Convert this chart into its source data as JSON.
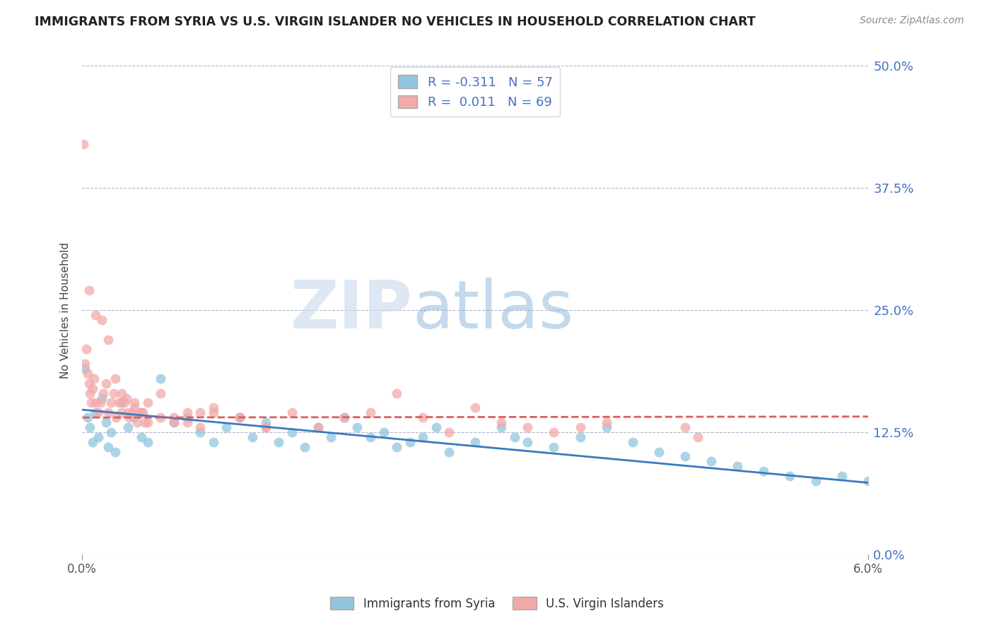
{
  "title": "IMMIGRANTS FROM SYRIA VS U.S. VIRGIN ISLANDER NO VEHICLES IN HOUSEHOLD CORRELATION CHART",
  "source": "Source: ZipAtlas.com",
  "ylabel": "No Vehicles in Household",
  "ytick_labels": [
    "0.0%",
    "12.5%",
    "25.0%",
    "37.5%",
    "50.0%"
  ],
  "ytick_values": [
    0.0,
    0.125,
    0.25,
    0.375,
    0.5
  ],
  "xlim": [
    0.0,
    0.06
  ],
  "ylim": [
    0.0,
    0.5
  ],
  "blue_color": "#92c5de",
  "pink_color": "#f4a9a9",
  "blue_line_color": "#3a7abf",
  "pink_line_color": "#d95f5f",
  "blue_R": -0.311,
  "blue_N": 57,
  "pink_R": 0.011,
  "pink_N": 69,
  "watermark_zip": "ZIP",
  "watermark_atlas": "atlas",
  "legend_label_blue": "Immigrants from Syria",
  "legend_label_pink": "U.S. Virgin Islanders",
  "blue_scatter_x": [
    0.0002,
    0.0004,
    0.0006,
    0.0008,
    0.001,
    0.0012,
    0.0015,
    0.0018,
    0.002,
    0.0022,
    0.0025,
    0.003,
    0.0035,
    0.004,
    0.0045,
    0.005,
    0.006,
    0.007,
    0.008,
    0.009,
    0.01,
    0.011,
    0.012,
    0.013,
    0.014,
    0.015,
    0.016,
    0.017,
    0.018,
    0.019,
    0.02,
    0.021,
    0.022,
    0.023,
    0.024,
    0.025,
    0.026,
    0.027,
    0.028,
    0.03,
    0.032,
    0.033,
    0.034,
    0.036,
    0.038,
    0.04,
    0.042,
    0.044,
    0.046,
    0.048,
    0.05,
    0.052,
    0.054,
    0.056,
    0.058,
    0.06,
    0.061
  ],
  "blue_scatter_y": [
    0.19,
    0.14,
    0.13,
    0.115,
    0.145,
    0.12,
    0.16,
    0.135,
    0.11,
    0.125,
    0.105,
    0.155,
    0.13,
    0.14,
    0.12,
    0.115,
    0.18,
    0.135,
    0.14,
    0.125,
    0.115,
    0.13,
    0.14,
    0.12,
    0.135,
    0.115,
    0.125,
    0.11,
    0.13,
    0.12,
    0.14,
    0.13,
    0.12,
    0.125,
    0.11,
    0.115,
    0.12,
    0.13,
    0.105,
    0.115,
    0.13,
    0.12,
    0.115,
    0.11,
    0.12,
    0.13,
    0.115,
    0.105,
    0.1,
    0.095,
    0.09,
    0.085,
    0.08,
    0.075,
    0.08,
    0.075,
    0.085
  ],
  "pink_scatter_x": [
    0.0001,
    0.0002,
    0.0003,
    0.0004,
    0.0005,
    0.0006,
    0.0007,
    0.0008,
    0.0009,
    0.001,
    0.0012,
    0.0014,
    0.0016,
    0.0018,
    0.002,
    0.0022,
    0.0024,
    0.0026,
    0.0028,
    0.003,
    0.0032,
    0.0034,
    0.0036,
    0.0038,
    0.004,
    0.0042,
    0.0044,
    0.0046,
    0.0048,
    0.005,
    0.006,
    0.007,
    0.008,
    0.009,
    0.01,
    0.012,
    0.014,
    0.016,
    0.018,
    0.02,
    0.022,
    0.024,
    0.026,
    0.028,
    0.03,
    0.032,
    0.034,
    0.036,
    0.038,
    0.04,
    0.0005,
    0.001,
    0.0015,
    0.002,
    0.0025,
    0.003,
    0.0035,
    0.004,
    0.0045,
    0.005,
    0.006,
    0.007,
    0.008,
    0.009,
    0.01,
    0.012,
    0.014,
    0.046,
    0.047
  ],
  "pink_scatter_y": [
    0.42,
    0.195,
    0.21,
    0.185,
    0.175,
    0.165,
    0.155,
    0.17,
    0.18,
    0.155,
    0.145,
    0.155,
    0.165,
    0.175,
    0.145,
    0.155,
    0.165,
    0.14,
    0.155,
    0.145,
    0.155,
    0.16,
    0.14,
    0.145,
    0.15,
    0.135,
    0.145,
    0.145,
    0.135,
    0.155,
    0.14,
    0.135,
    0.145,
    0.145,
    0.15,
    0.14,
    0.13,
    0.145,
    0.13,
    0.14,
    0.145,
    0.165,
    0.14,
    0.125,
    0.15,
    0.135,
    0.13,
    0.125,
    0.13,
    0.135,
    0.27,
    0.245,
    0.24,
    0.22,
    0.18,
    0.165,
    0.145,
    0.155,
    0.145,
    0.135,
    0.165,
    0.14,
    0.135,
    0.13,
    0.145,
    0.14,
    0.13,
    0.13,
    0.12
  ]
}
